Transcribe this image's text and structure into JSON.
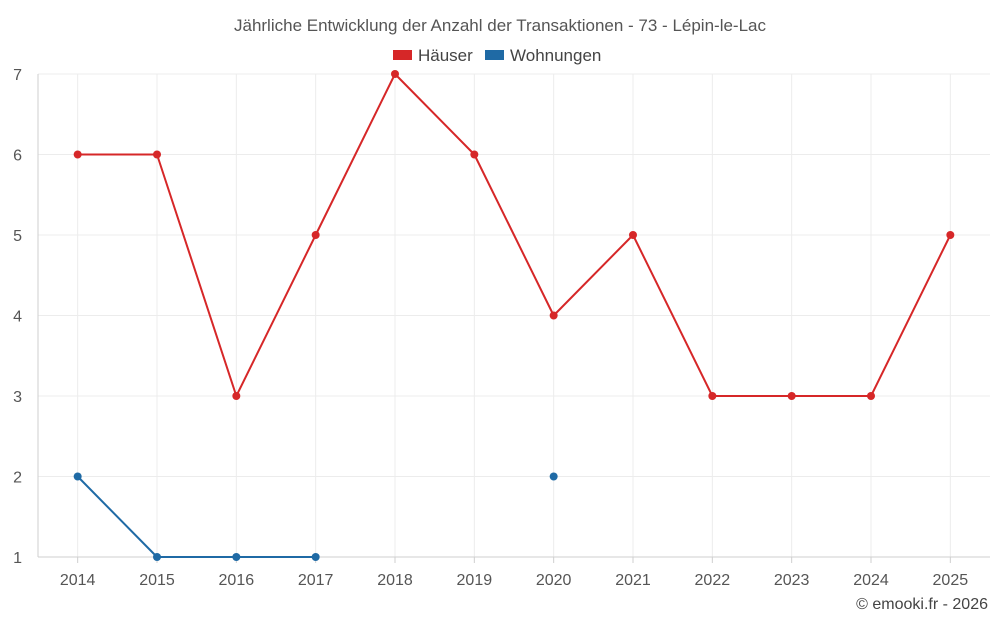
{
  "chart_data": {
    "type": "line",
    "title": "Jährliche Entwicklung der Anzahl der Transaktionen - 73 - Lépin-le-Lac",
    "xlabel": "",
    "ylabel": "",
    "categories": [
      "2014",
      "2015",
      "2016",
      "2017",
      "2018",
      "2019",
      "2020",
      "2021",
      "2022",
      "2023",
      "2024",
      "2025"
    ],
    "ylim": [
      1,
      7
    ],
    "yticks": [
      1,
      2,
      3,
      4,
      5,
      6,
      7
    ],
    "grid": true,
    "legend_position": "top-center",
    "series": [
      {
        "name": "Häuser",
        "color": "#d62728",
        "values": [
          6,
          6,
          3,
          5,
          7,
          6,
          4,
          5,
          3,
          3,
          3,
          5
        ]
      },
      {
        "name": "Wohnungen",
        "color": "#1f6aa5",
        "values": [
          2,
          1,
          1,
          1,
          null,
          null,
          2,
          null,
          null,
          null,
          null,
          null
        ]
      }
    ]
  },
  "footer": {
    "credit": "© emooki.fr - 2026"
  }
}
